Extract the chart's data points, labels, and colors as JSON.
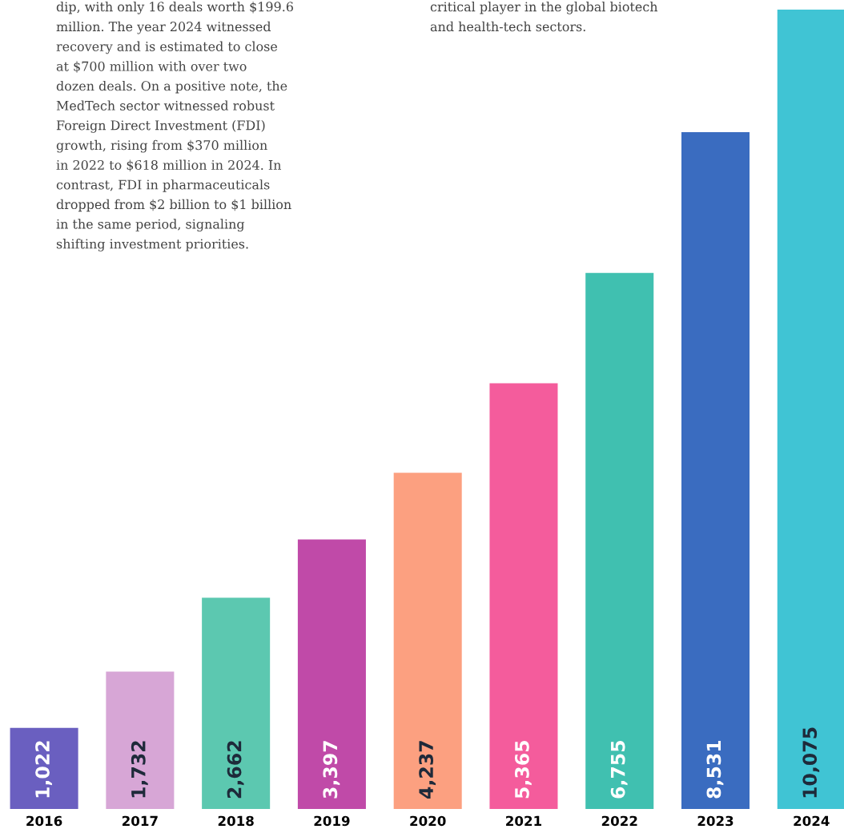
{
  "chart_data": {
    "type": "bar",
    "categories": [
      "2016",
      "2017",
      "2018",
      "2019",
      "2020",
      "2021",
      "2022",
      "2023",
      "2024"
    ],
    "values": [
      1022,
      1732,
      2662,
      3397,
      4237,
      5365,
      6755,
      8531,
      10075
    ],
    "value_labels": [
      "1,022",
      "1,732",
      "2,662",
      "3,397",
      "4,237",
      "5,365",
      "6,755",
      "8,531",
      "10,075"
    ],
    "colors": [
      "#6a5fc0",
      "#d7a6d6",
      "#5cc8b0",
      "#c04aa8",
      "#fca080",
      "#f45c9c",
      "#40c0b0",
      "#3a6cc0",
      "#40c4d4"
    ],
    "grid": false,
    "annotations": [
      "dip, with only 16 deals worth $199.6\nmillion. The year 2024 witnessed\nrecovery and is estimated to close\nat $700 million with over two\ndozen deals. On a positive note, the\nMedTech sector witnessed robust\nForeign Direct Investment (FDI)\ngrowth, rising from $370 million\nin 2022 to $618 million in 2024. In\ncontrast, FDI in pharmaceuticals\ndropped from $2 billion to $1 billion\nin the same period, signaling\nshifting investment priorities.",
      "critical player in the global biotech\nand health-tech sectors."
    ]
  }
}
